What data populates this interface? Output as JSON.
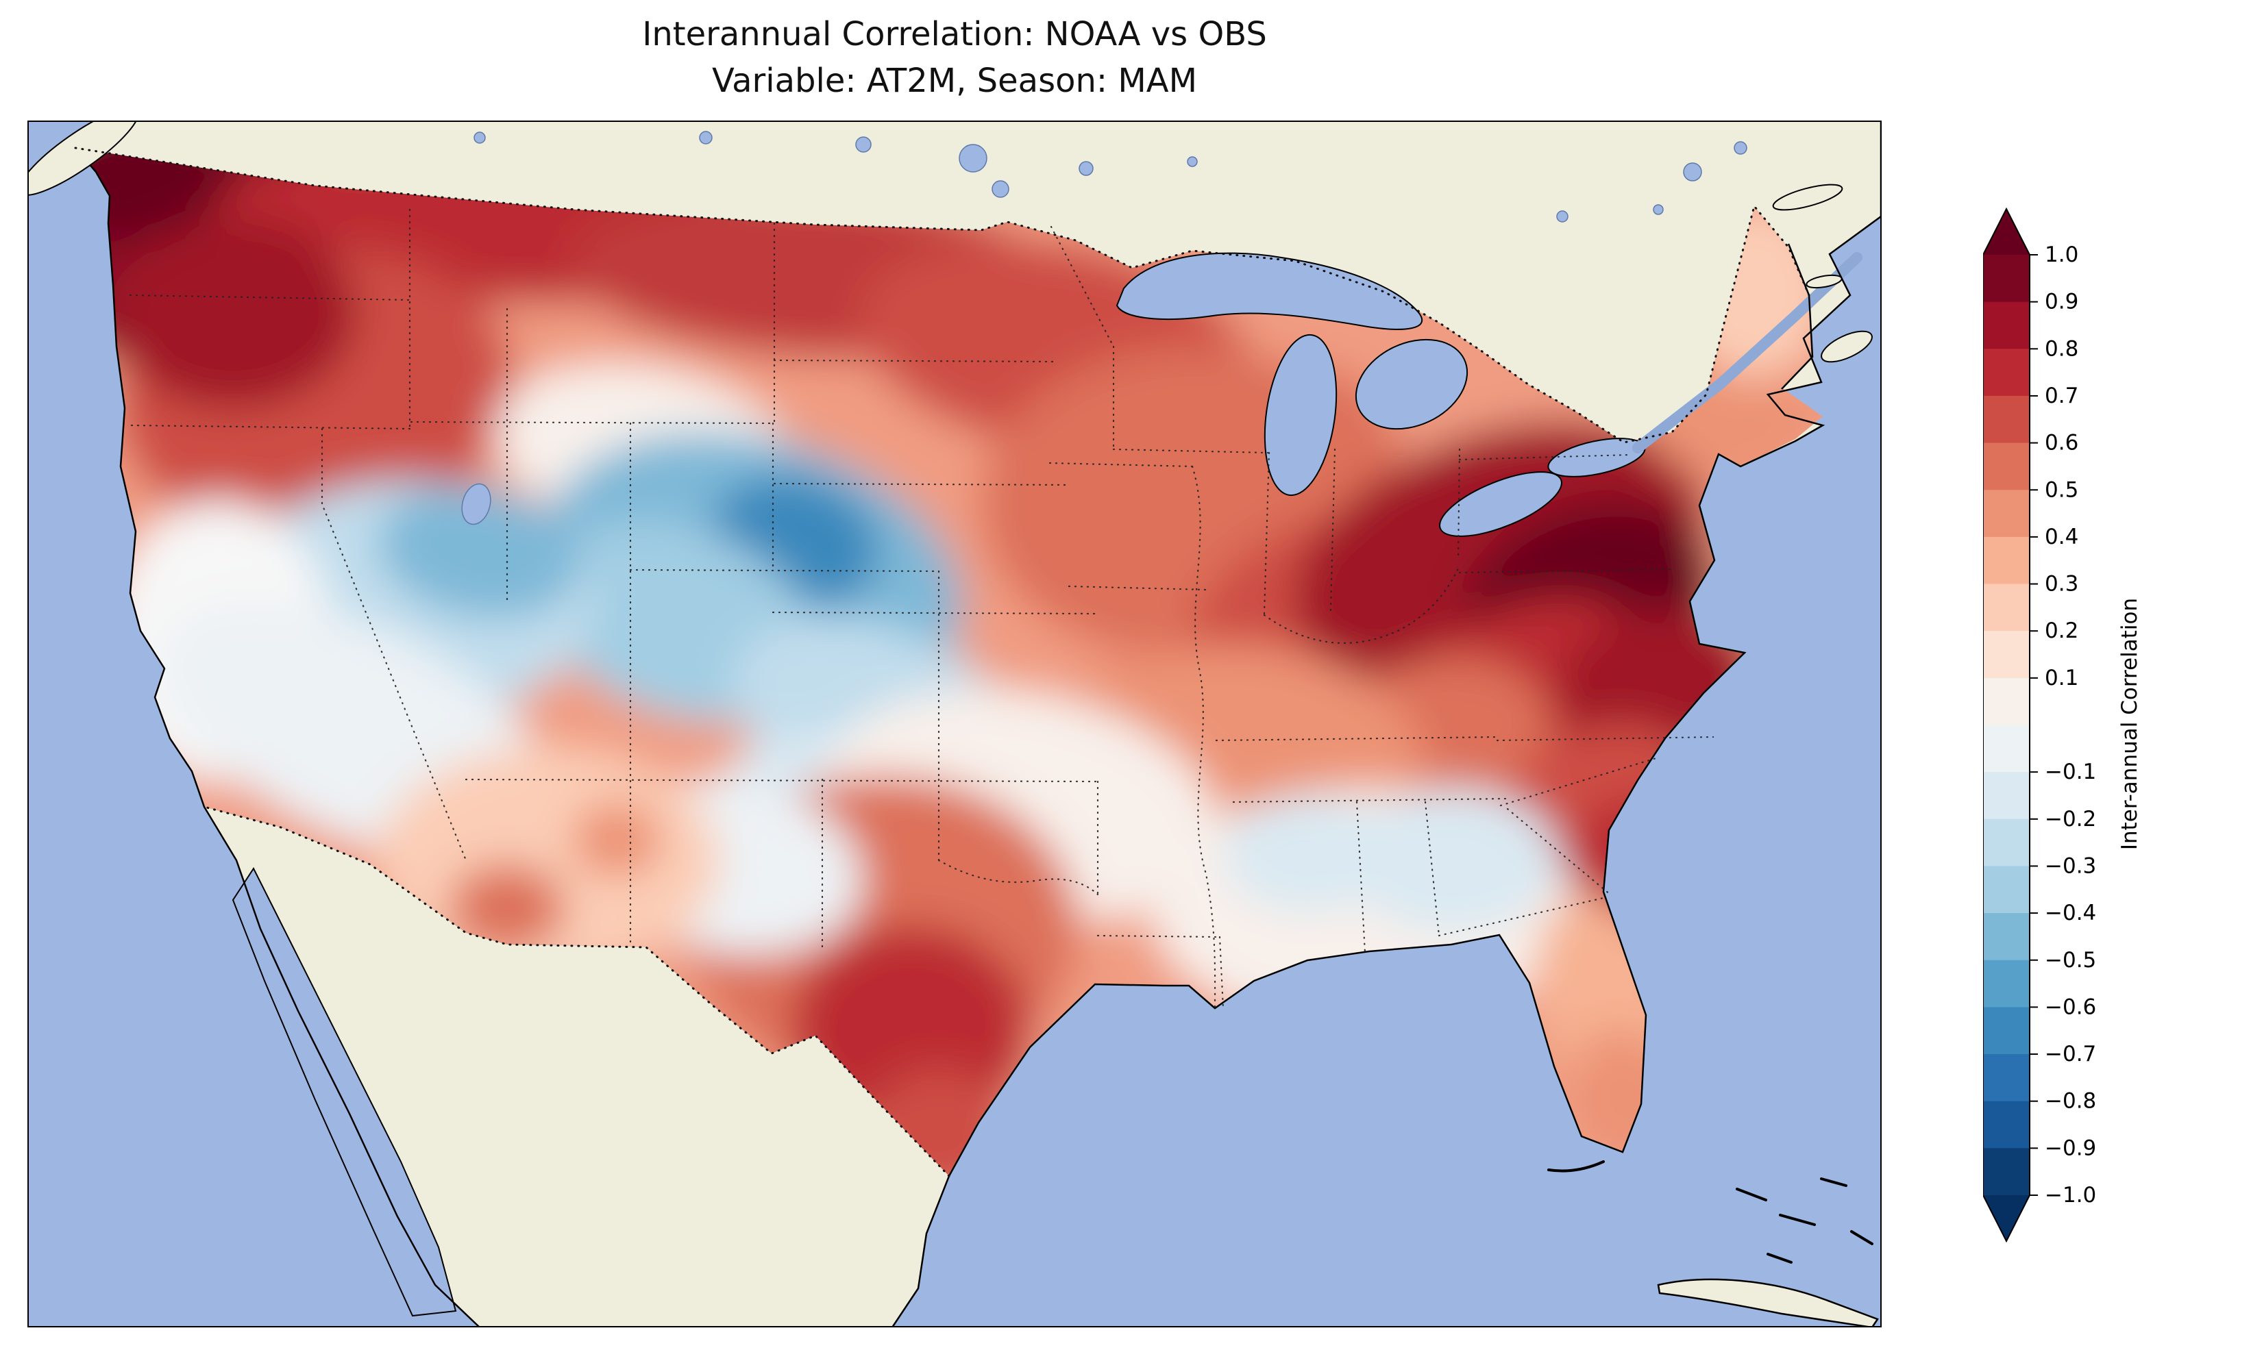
{
  "figure": {
    "title_line1": "Interannual Correlation: NOAA vs OBS",
    "title_line2": "Variable: AT2M, Season: MAM"
  },
  "chart_data": {
    "type": "heatmap",
    "subtype": "filled-contour-geographic-map",
    "title": "Interannual Correlation: NOAA vs OBS",
    "subtitle": "Variable: AT2M, Season: MAM",
    "comparison": "NOAA vs OBS",
    "variable": "AT2M",
    "season": "MAM",
    "region": "Contiguous United States with surrounding Canada, Mexico, oceans and Great Lakes",
    "grid": "off",
    "legend_position": "right vertical colorbar",
    "colorbar": {
      "label": "Inter-annual Correlation",
      "orientation": "vertical",
      "position": "right",
      "colormap": "RdBu_r",
      "vmin": -1.0,
      "vmax": 1.0,
      "level_step": 0.1,
      "extend": "both",
      "tick_labels": [
        "1.0",
        "0.9",
        "0.8",
        "0.7",
        "0.6",
        "0.5",
        "0.4",
        "0.3",
        "0.2",
        "0.1",
        "−0.1",
        "−0.2",
        "−0.3",
        "−0.4",
        "−0.5",
        "−0.6",
        "−0.7",
        "−0.8",
        "−0.9",
        "−1.0"
      ],
      "band_colors_top_to_bottom": [
        "#7a0622",
        "#9f1228",
        "#bb2a33",
        "#cd4e44",
        "#dd715a",
        "#ec9375",
        "#f6b293",
        "#fbcdb6",
        "#fbe2d3",
        "#f8f0eb",
        "#edf2f5",
        "#dae9f2",
        "#c1ddec",
        "#a2cde3",
        "#7eb8d7",
        "#57a0ca",
        "#3b88bc",
        "#2a71b2",
        "#1a5999",
        "#0c3e74"
      ],
      "extend_over_color": "#67001f",
      "extend_under_color": "#053061"
    },
    "map_colors": {
      "ocean": "#9db7e2",
      "land_no_data": "#efeedd",
      "coastline": "#000000",
      "border_style": "dotted black"
    },
    "regional_values_approx": [
      {
        "region": "Pacific Northwest (WA / N-OR)",
        "correlation": 0.85
      },
      {
        "region": "Northern border band (MT / ND / MN)",
        "correlation": 0.75
      },
      {
        "region": "Upper Midwest (WI / MI)",
        "correlation": 0.6
      },
      {
        "region": "Northeast (PA / NY / New England)",
        "correlation": 0.85
      },
      {
        "region": "Mid-Atlantic & Appalachians (VA / NC)",
        "correlation": 0.7
      },
      {
        "region": "Ohio Valley",
        "correlation": 0.6
      },
      {
        "region": "Central High Plains (CO / NE / KS / WY)",
        "correlation": -0.45
      },
      {
        "region": "Great Basin (NV / UT)",
        "correlation": -0.2
      },
      {
        "region": "California Central Valley",
        "correlation": 0.0
      },
      {
        "region": "Southwest (AZ / NM)",
        "correlation": 0.3
      },
      {
        "region": "Central and South Texas",
        "correlation": 0.65
      },
      {
        "region": "Gulf Coast / Deep South (LA / MS / AL / GA)",
        "correlation": 0.05
      },
      {
        "region": "Southeast interior pale-blue patches",
        "correlation": -0.15
      },
      {
        "region": "Florida peninsula",
        "correlation": 0.35
      }
    ],
    "field_render": {
      "base_color": "#f09c82",
      "blobs": [
        [
          270,
          185,
          260,
          170,
          -15,
          "#8c1127"
        ],
        [
          160,
          80,
          150,
          100,
          0,
          "#67001f"
        ],
        [
          700,
          150,
          430,
          115,
          2,
          "#bb2a33"
        ],
        [
          1150,
          225,
          360,
          120,
          3,
          "#c03a3b"
        ],
        [
          1500,
          330,
          290,
          150,
          10,
          "#cd4e44"
        ],
        [
          420,
          400,
          290,
          210,
          -8,
          "#cd4e44"
        ],
        [
          300,
          280,
          180,
          140,
          0,
          "#9f1228"
        ],
        [
          1700,
          560,
          310,
          230,
          0,
          "#dd715a"
        ],
        [
          1860,
          480,
          140,
          120,
          0,
          "#dd715a"
        ],
        [
          1950,
          760,
          260,
          190,
          -10,
          "#cd4e44"
        ],
        [
          2150,
          640,
          310,
          185,
          -18,
          "#9f1228"
        ],
        [
          2280,
          700,
          190,
          135,
          -20,
          "#67001f"
        ],
        [
          2180,
          880,
          230,
          165,
          -30,
          "#bb2a33"
        ],
        [
          2380,
          830,
          150,
          115,
          -15,
          "#9f1228"
        ],
        [
          2050,
          920,
          180,
          130,
          -20,
          "#dd715a"
        ],
        [
          2300,
          1010,
          160,
          125,
          -20,
          "#cd4e44"
        ],
        [
          2350,
          1080,
          120,
          90,
          -20,
          "#bb2a33"
        ],
        [
          1750,
          950,
          290,
          185,
          0,
          "#ec9375"
        ],
        [
          900,
          480,
          220,
          120,
          10,
          "#f8f0eb"
        ],
        [
          2480,
          420,
          125,
          105,
          0,
          "#ec9375"
        ],
        [
          2520,
          250,
          105,
          125,
          0,
          "#fbcdb6"
        ],
        [
          1060,
          660,
          310,
          195,
          15,
          "#7eb8d7"
        ],
        [
          1120,
          615,
          125,
          95,
          15,
          "#3b88bc"
        ],
        [
          950,
          730,
          210,
          135,
          20,
          "#a2cde3"
        ],
        [
          560,
          700,
          270,
          175,
          0,
          "#c1ddec"
        ],
        [
          660,
          630,
          150,
          95,
          10,
          "#7eb8d7"
        ],
        [
          280,
          760,
          165,
          205,
          0,
          "#f7f7f7"
        ],
        [
          480,
          890,
          310,
          150,
          25,
          "#edf2f5"
        ],
        [
          1240,
          870,
          220,
          130,
          20,
          "#c1ddec"
        ],
        [
          1180,
          1010,
          170,
          110,
          15,
          "#dae9f2"
        ],
        [
          1450,
          1000,
          290,
          165,
          10,
          "#f8f0eb"
        ],
        [
          1250,
          1180,
          285,
          225,
          0,
          "#dd715a"
        ],
        [
          1290,
          1330,
          175,
          155,
          0,
          "#bb2a33"
        ],
        [
          1330,
          1480,
          105,
          95,
          0,
          "#cd4e44"
        ],
        [
          1030,
          1090,
          190,
          125,
          10,
          "#edf2f5"
        ],
        [
          760,
          1080,
          250,
          165,
          0,
          "#fbcdb6"
        ],
        [
          700,
          1150,
          85,
          65,
          0,
          "#dd715a"
        ],
        [
          860,
          1050,
          65,
          55,
          0,
          "#ec9375"
        ],
        [
          1950,
          1150,
          310,
          175,
          0,
          "#f8f0eb"
        ],
        [
          2080,
          1080,
          155,
          105,
          0,
          "#dae9f2"
        ],
        [
          1870,
          1070,
          125,
          85,
          0,
          "#dae9f2"
        ],
        [
          2300,
          1280,
          95,
          150,
          -15,
          "#f6b293"
        ],
        [
          2330,
          1420,
          75,
          95,
          -15,
          "#ec9375"
        ]
      ]
    }
  }
}
